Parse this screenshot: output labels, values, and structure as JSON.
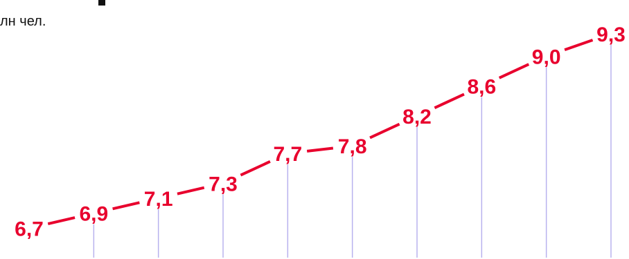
{
  "colors": {
    "line": "#e8002d",
    "labels": "#e8002d",
    "gridlines": "#b8b2ee",
    "text": "#111111"
  },
  "chart_data": {
    "type": "line",
    "unit_label": "лн чел.",
    "x": [
      1,
      2,
      3,
      4,
      5,
      6,
      7,
      8,
      9,
      10
    ],
    "values": [
      6.7,
      6.9,
      7.1,
      7.3,
      7.7,
      7.8,
      8.2,
      8.6,
      9.0,
      9.3
    ],
    "data_labels": [
      "6,7",
      "6,9",
      "7,1",
      "7,3",
      "7,7",
      "7,8",
      "8,2",
      "8,6",
      "9,0",
      "9,3"
    ],
    "ylim": [
      6.5,
      9.4
    ],
    "grid": "vertical drop lines from each point",
    "legend": "none"
  }
}
